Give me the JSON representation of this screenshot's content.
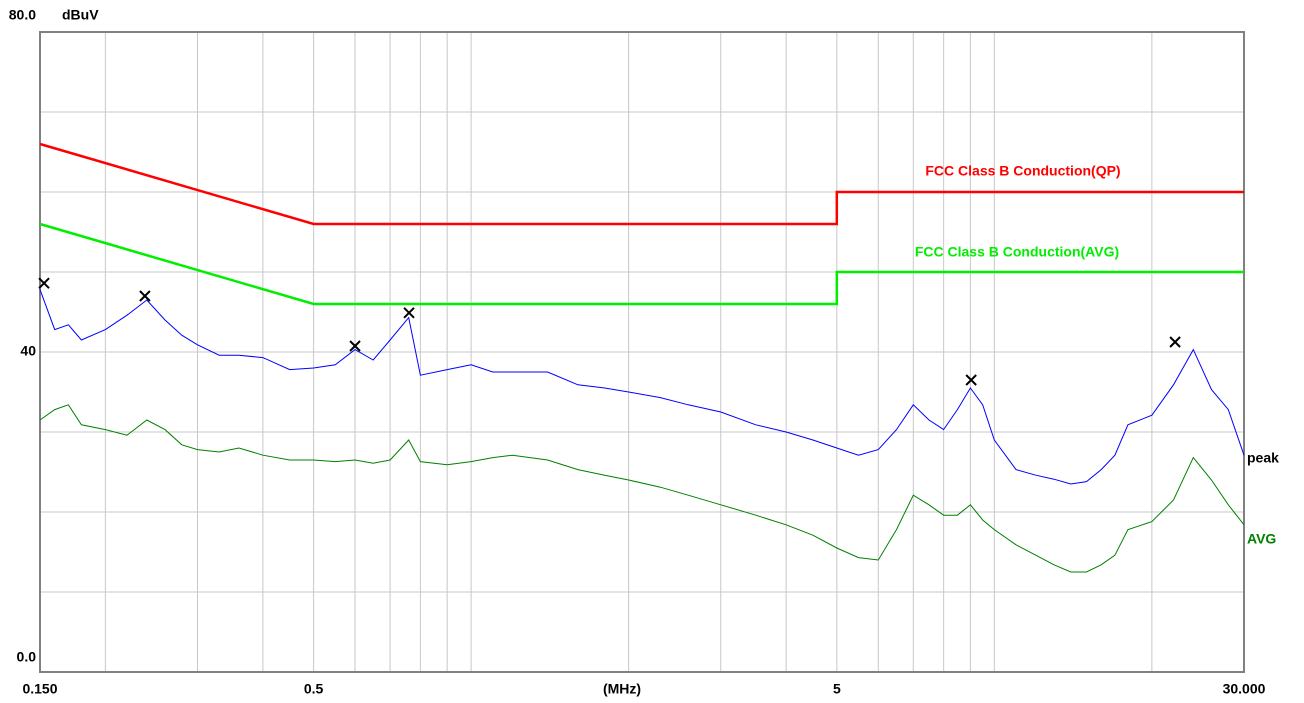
{
  "chart_data": {
    "type": "line",
    "y_unit": "dBuV",
    "x_label": "(MHz)",
    "xscale": "log",
    "xlim": [
      0.15,
      30
    ],
    "ylim": [
      0,
      80
    ],
    "xticks": [
      {
        "value": 0.15,
        "label": "0.150"
      },
      0.5,
      5,
      {
        "value": 30,
        "label": "30.000"
      }
    ],
    "yticks": [
      {
        "value": 80,
        "label": "80.0"
      },
      40,
      {
        "value": 0,
        "label": "0.0"
      }
    ],
    "xgrid": [
      0.2,
      0.3,
      0.4,
      0.5,
      0.6,
      0.7,
      0.8,
      0.9,
      1,
      2,
      3,
      4,
      5,
      6,
      7,
      8,
      9,
      10,
      20
    ],
    "ygrid": [
      10,
      20,
      30,
      40,
      50,
      60,
      70
    ],
    "grid": true,
    "series": [
      {
        "name": "FCC Class B Conduction(QP)",
        "color": "#ff0000",
        "x": [
          0.15,
          0.5,
          5,
          5,
          30
        ],
        "values": [
          66,
          56,
          56,
          60,
          60
        ]
      },
      {
        "name": "FCC Class B Conduction(AVG)",
        "color": "#00ee00",
        "x": [
          0.15,
          0.5,
          5,
          5,
          30
        ],
        "values": [
          56,
          46,
          46,
          50,
          50
        ]
      },
      {
        "name": "peak",
        "color": "#0000ff",
        "x": [
          0.15,
          0.16,
          0.17,
          0.18,
          0.2,
          0.22,
          0.24,
          0.26,
          0.28,
          0.3,
          0.33,
          0.36,
          0.4,
          0.45,
          0.5,
          0.55,
          0.6,
          0.65,
          0.7,
          0.76,
          0.8,
          0.9,
          1,
          1.1,
          1.2,
          1.4,
          1.6,
          1.8,
          2,
          2.3,
          2.6,
          3,
          3.5,
          4,
          4.5,
          5,
          5.5,
          6,
          6.5,
          7,
          7.5,
          8,
          8.5,
          9,
          9.5,
          10,
          11,
          12,
          13,
          14,
          15,
          16,
          17,
          18,
          20,
          22,
          24,
          26,
          28,
          30
        ],
        "values": [
          47.8,
          42.8,
          43.4,
          41.5,
          42.8,
          44.6,
          46.5,
          44,
          42.1,
          40.9,
          39.6,
          39.6,
          39.3,
          37.8,
          38,
          38.4,
          40.3,
          39,
          41.5,
          44.3,
          37.1,
          37.8,
          38.4,
          37.5,
          37.5,
          37.5,
          35.9,
          35.5,
          35,
          34.3,
          33.4,
          32.5,
          30.9,
          30,
          29,
          28,
          27.1,
          27.8,
          30.3,
          33.4,
          31.5,
          30.3,
          32.8,
          35.5,
          33.4,
          29,
          25.3,
          24.6,
          24.1,
          23.5,
          23.8,
          25.3,
          27.1,
          30.9,
          32.1,
          35.9,
          40.3,
          35.3,
          32.8,
          27.1
        ]
      },
      {
        "name": "AVG",
        "color": "#008000",
        "x": [
          0.15,
          0.16,
          0.17,
          0.18,
          0.2,
          0.22,
          0.24,
          0.26,
          0.28,
          0.3,
          0.33,
          0.36,
          0.4,
          0.45,
          0.5,
          0.55,
          0.6,
          0.65,
          0.7,
          0.76,
          0.8,
          0.9,
          1,
          1.1,
          1.2,
          1.4,
          1.6,
          1.8,
          2,
          2.3,
          2.6,
          3,
          3.5,
          4,
          4.5,
          5,
          5.5,
          6,
          6.5,
          7,
          7.5,
          8,
          8.5,
          9,
          9.5,
          10,
          11,
          12,
          13,
          14,
          15,
          16,
          17,
          18,
          20,
          22,
          24,
          26,
          28,
          30
        ],
        "values": [
          31.5,
          32.8,
          33.4,
          30.9,
          30.3,
          29.6,
          31.5,
          30.3,
          28.4,
          27.8,
          27.5,
          28,
          27.1,
          26.5,
          26.5,
          26.3,
          26.5,
          26.1,
          26.5,
          29,
          26.3,
          25.9,
          26.3,
          26.8,
          27.1,
          26.5,
          25.3,
          24.6,
          24,
          23.1,
          22.1,
          20.9,
          19.6,
          18.4,
          17.1,
          15.5,
          14.3,
          14,
          17.8,
          22.1,
          20.9,
          19.6,
          19.6,
          20.9,
          19,
          17.8,
          15.9,
          14.6,
          13.4,
          12.5,
          12.5,
          13.4,
          14.6,
          17.8,
          18.8,
          21.5,
          26.8,
          24,
          20.9,
          18.4
        ]
      }
    ],
    "markers": {
      "x": [
        0.1527,
        0.238,
        0.6,
        0.761,
        9.03,
        22.15
      ],
      "values": [
        48.6,
        47,
        40.75,
        44.9,
        36.5,
        41.25
      ]
    }
  }
}
